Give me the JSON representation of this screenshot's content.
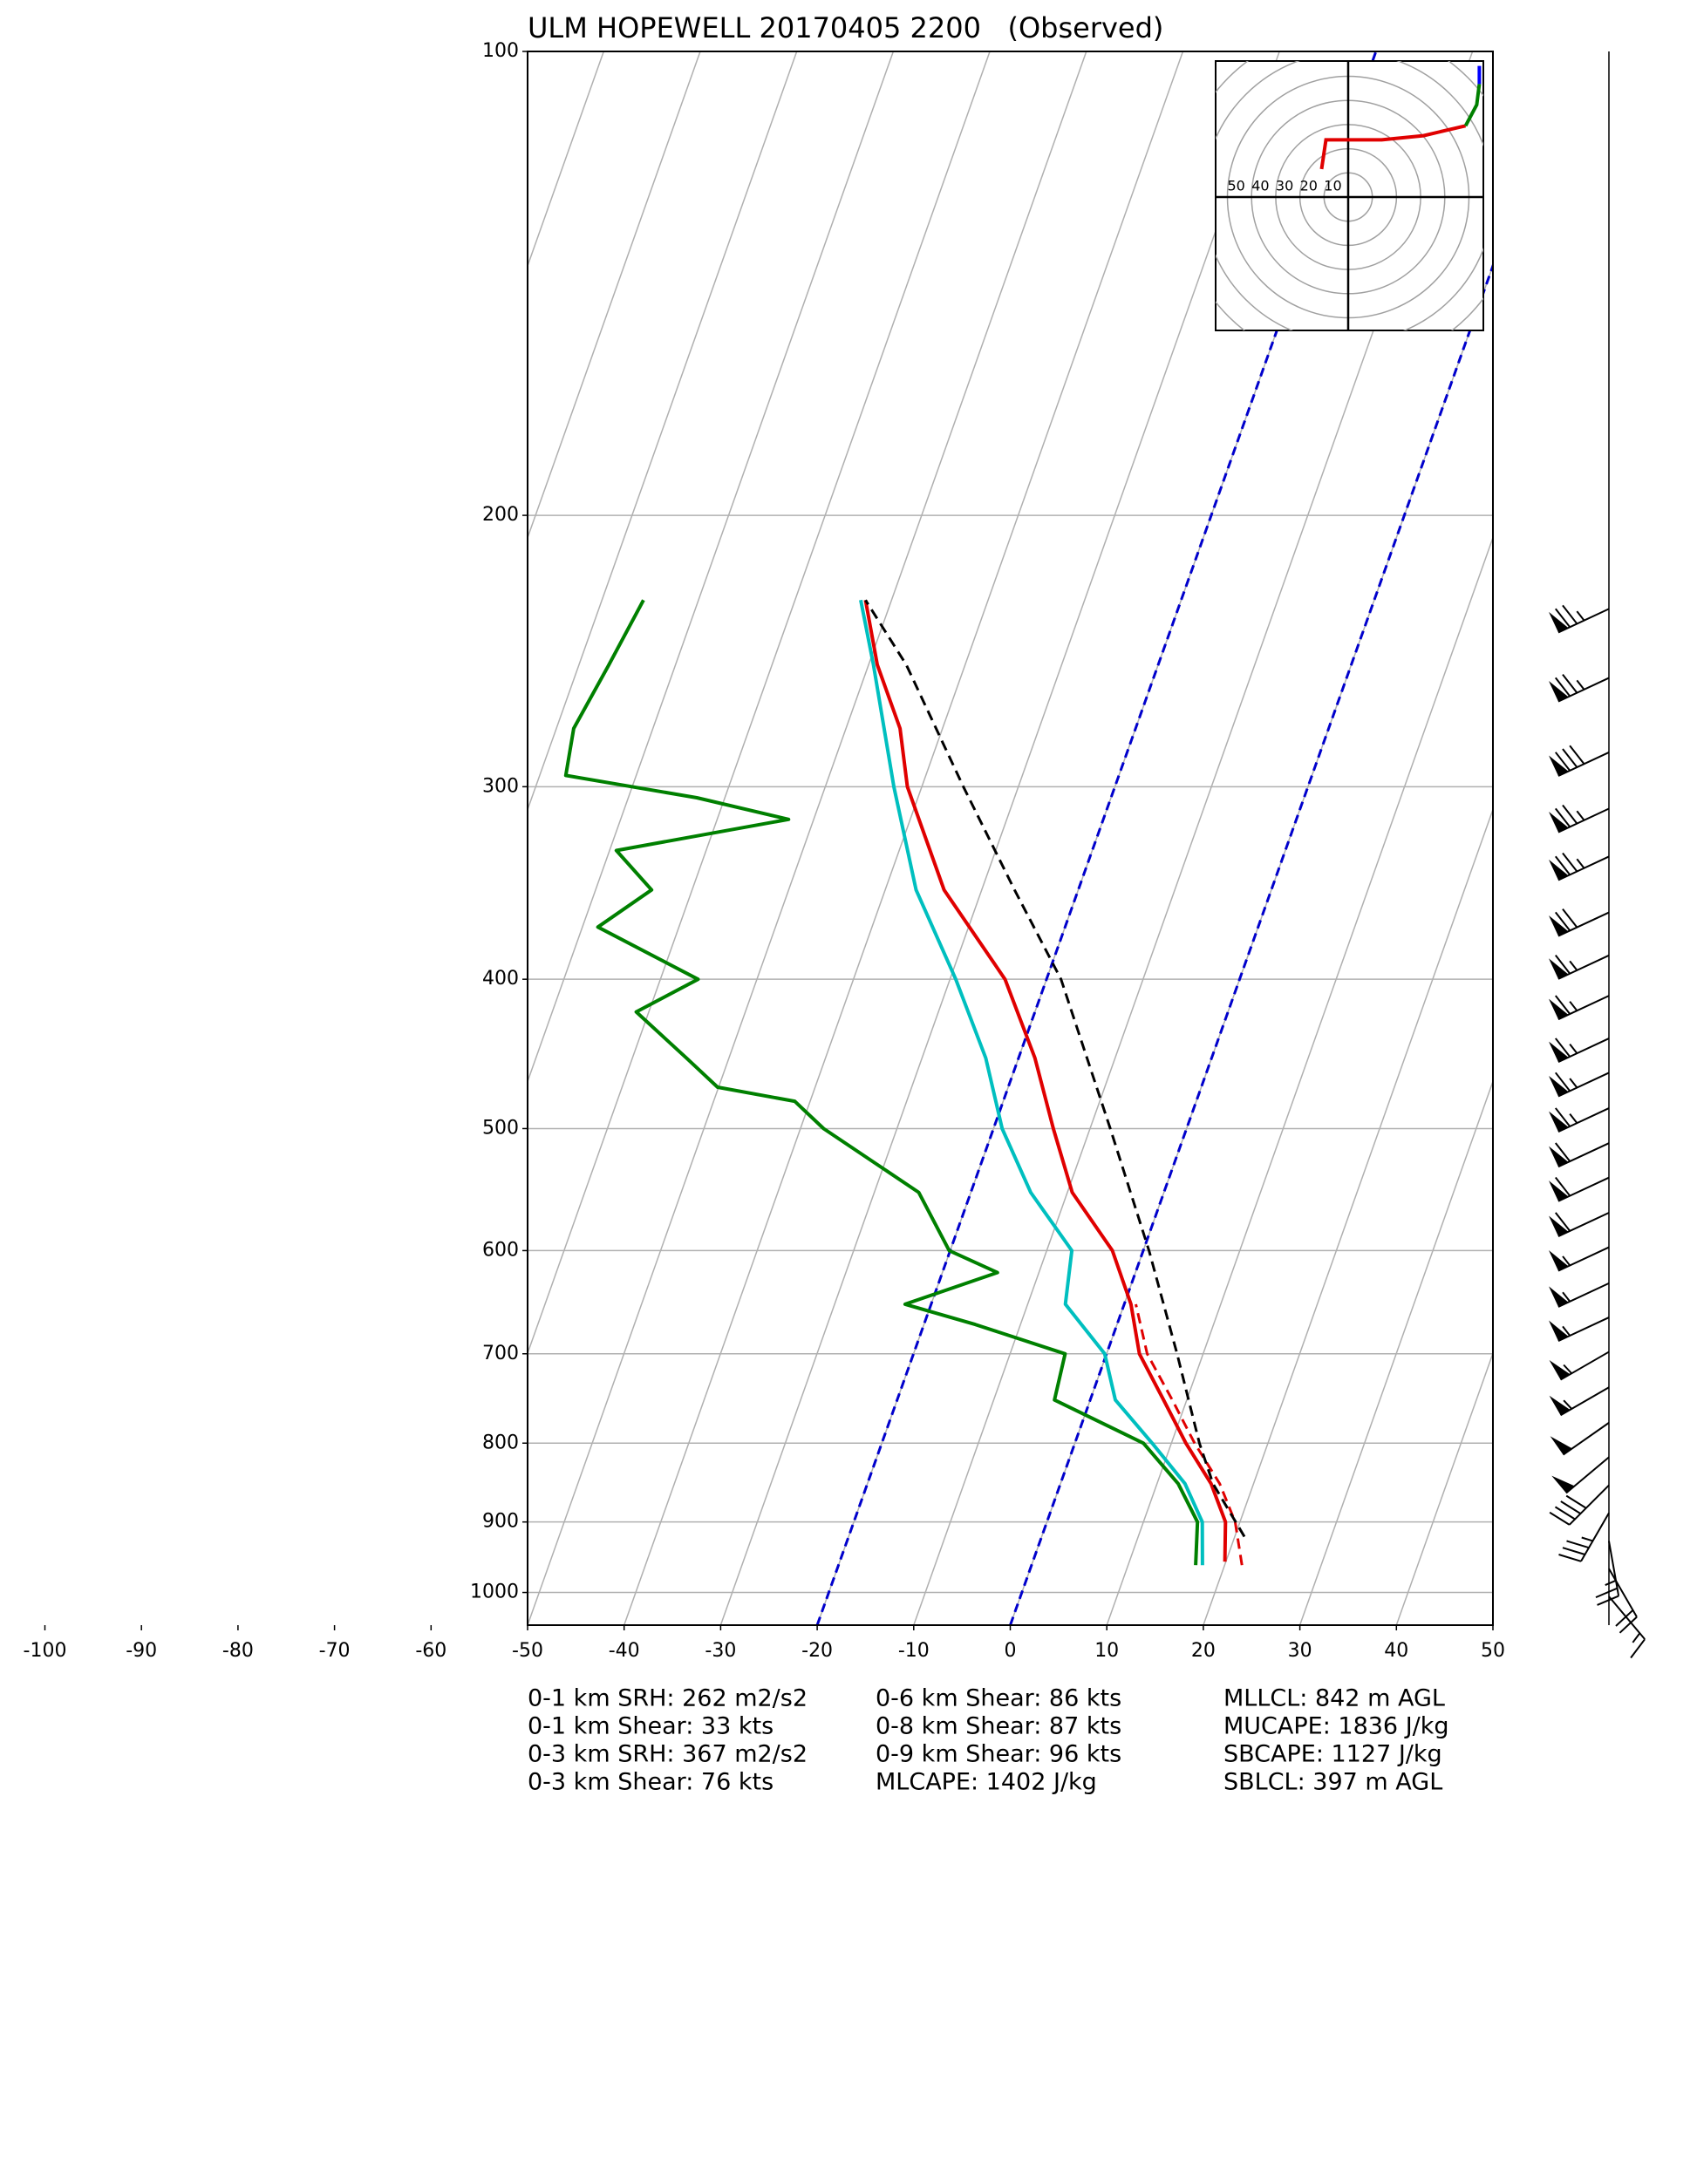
{
  "chart_data": {
    "type": "skewt",
    "title": "ULM HOPEWELL 20170405 2200   (Observed)",
    "xlim": [
      -50,
      50
    ],
    "ylim": [
      1050,
      100
    ],
    "y_scale": "log",
    "grid": true,
    "xticks": [
      -100,
      -90,
      -80,
      -70,
      -60,
      -50,
      -40,
      -30,
      -20,
      -10,
      0,
      10,
      20,
      30,
      40,
      50
    ],
    "yticks": [
      100,
      200,
      300,
      400,
      500,
      600,
      700,
      800,
      900,
      1000
    ],
    "highlight_isotherms": {
      "values": [
        -20,
        0
      ],
      "color": "#0000cc"
    },
    "series": [
      {
        "color": "#00bfbf",
        "style": "solid",
        "pressure": [
          960,
          900,
          850,
          800,
          750,
          700,
          650,
          600,
          550,
          500,
          450,
          400,
          350,
          300,
          250,
          227
        ],
        "values": [
          17.7,
          16.1,
          12.9,
          8.0,
          2.6,
          -0.2,
          -6.1,
          -7.4,
          -13.8,
          -19.1,
          -23.4,
          -29.4,
          -36.8,
          -42.9,
          -49.5,
          -53.2
        ]
      },
      {
        "color": "#008000",
        "style": "solid",
        "pressure": [
          960,
          900,
          850,
          800,
          750,
          700,
          670,
          650,
          620,
          600,
          550,
          500,
          480,
          470,
          450,
          420,
          400,
          370,
          350,
          330,
          315,
          305,
          295,
          275,
          250,
          227
        ],
        "values": [
          17.0,
          15.6,
          12.2,
          7.1,
          -3.7,
          -4.3,
          -14.7,
          -22.7,
          -14.3,
          -20.1,
          -25.4,
          -37.6,
          -41.6,
          -50.1,
          -54.4,
          -61.3,
          -56.1,
          -68.4,
          -64.2,
          -69.3,
          -52.6,
          -62.9,
          -77.3,
          -78.2,
          -76.9,
          -75.7
        ]
      },
      {
        "color": "#e00000",
        "style": "dashed",
        "pressure": [
          960,
          900,
          850,
          800,
          750,
          700,
          650
        ],
        "values": [
          21.8,
          19.5,
          16.5,
          12.4,
          8.5,
          4.2,
          1.2
        ]
      },
      {
        "color": "#e00000",
        "style": "solid",
        "pressure": [
          955,
          900,
          850,
          800,
          750,
          700,
          650,
          600,
          550,
          500,
          450,
          400,
          350,
          300,
          275,
          250,
          227
        ],
        "values": [
          19.9,
          18.5,
          15.6,
          11.5,
          7.6,
          3.4,
          0.7,
          -3.2,
          -9.5,
          -13.8,
          -18.3,
          -24.3,
          -33.9,
          -41.5,
          -44.4,
          -49.1,
          -52.7
        ]
      },
      {
        "color": "#000000",
        "style": "dashed",
        "pressure": [
          920,
          850,
          800,
          700,
          600,
          500,
          400,
          350,
          300,
          250,
          227
        ],
        "values": [
          21.0,
          15.8,
          12.9,
          7.3,
          0.6,
          -7.9,
          -18.5,
          -26.6,
          -35.7,
          -46.1,
          -52.7
        ]
      }
    ],
    "wind": {
      "pressure": [
        230,
        255,
        285,
        310,
        333,
        362,
        386,
        410,
        437,
        460,
        485,
        511,
        538,
        567,
        597,
        630,
        663,
        698,
        736,
        776,
        817,
        852,
        888,
        926,
        965,
        1006
      ],
      "speed": [
        75,
        75,
        80,
        75,
        75,
        70,
        65,
        65,
        65,
        65,
        65,
        60,
        60,
        60,
        55,
        55,
        55,
        55,
        55,
        50,
        50,
        40,
        35,
        25,
        20,
        15
      ],
      "direction": [
        245,
        245,
        245,
        245,
        245,
        245,
        245,
        245,
        245,
        245,
        245,
        245,
        245,
        245,
        245,
        245,
        245,
        240,
        240,
        235,
        230,
        225,
        210,
        170,
        150,
        140
      ]
    },
    "hodograph": {
      "rings": [
        10,
        20,
        30,
        40,
        50
      ],
      "segments": [
        {
          "color": "#e00000",
          "u": [
            -11.0,
            -9.2,
            13.9,
            31.2,
            48.6
          ],
          "v": [
            11.6,
            23.7,
            23.7,
            25.4,
            29.5
          ]
        },
        {
          "color": "#008000",
          "u": [
            48.6,
            53.2,
            54.3
          ],
          "v": [
            29.5,
            38.2,
            46.8
          ]
        },
        {
          "color": "#0000ff",
          "u": [
            54.3,
            54.3
          ],
          "v": [
            46.8,
            54.3
          ]
        }
      ]
    },
    "stats": [
      [
        "0-1 km SRH: 262 m2/s2",
        "0-1 km Shear: 33 kts",
        "0-3 km SRH: 367 m2/s2",
        "0-3 km Shear: 76 kts"
      ],
      [
        "0-6 km Shear: 86 kts",
        "0-8 km Shear: 87 kts",
        "0-9 km Shear: 96 kts",
        "MLCAPE: 1402 J/kg"
      ],
      [
        "MLLCL: 842 m AGL",
        "MUCAPE: 1836 J/kg",
        "SBCAPE: 1127 J/kg",
        "SBLCL: 397 m AGL"
      ]
    ]
  }
}
